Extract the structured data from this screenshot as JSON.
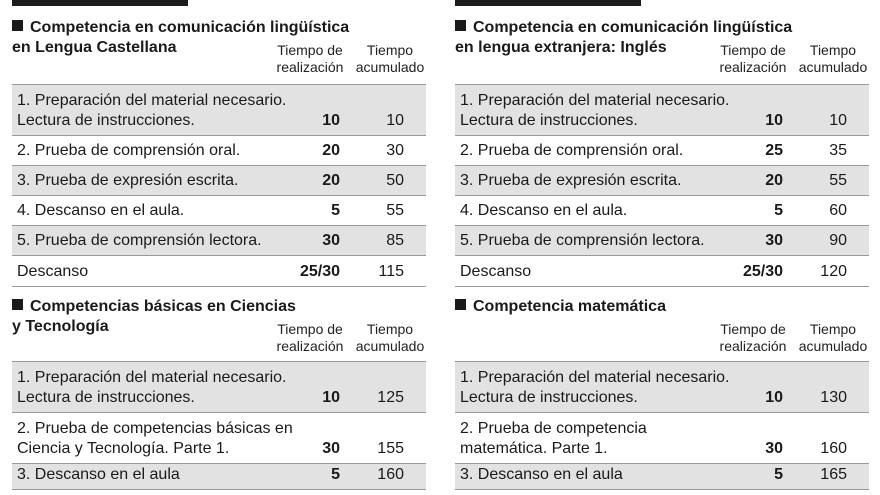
{
  "left": {
    "sections": [
      {
        "title_line1": "Competencia en comunicación lingüística",
        "title_line2": "en Lengua Castellana",
        "col_time": [
          "Tiempo de",
          "realización"
        ],
        "col_acc": [
          "Tiempo",
          "acumulado"
        ],
        "rows": [
          {
            "label": [
              "1. Preparación del material necesario.",
              "Lectura de instrucciones."
            ],
            "time": "10",
            "acc": "10"
          },
          {
            "label": [
              "2. Prueba de comprensión oral."
            ],
            "time": "20",
            "acc": "30"
          },
          {
            "label": [
              "3. Prueba de expresión escrita."
            ],
            "time": "20",
            "acc": "50"
          },
          {
            "label": [
              "4. Descanso en el aula."
            ],
            "time": "5",
            "acc": "55"
          },
          {
            "label": [
              "5. Prueba de comprensión lectora."
            ],
            "time": "30",
            "acc": "85"
          },
          {
            "label": [
              "Descanso"
            ],
            "time": "25/30",
            "acc": "115"
          }
        ]
      },
      {
        "title_line1": "Competencias básicas en Ciencias",
        "title_line2": "y Tecnología",
        "col_time": [
          "Tiempo de",
          "realización"
        ],
        "col_acc": [
          "Tiempo",
          "acumulado"
        ],
        "rows": [
          {
            "label": [
              "1. Preparación del material necesario.",
              "Lectura de instrucciones."
            ],
            "time": "10",
            "acc": "125"
          },
          {
            "label": [
              "2. Prueba de competencias básicas en",
              "Ciencia y Tecnología. Parte 1."
            ],
            "time": "30",
            "acc": "155"
          },
          {
            "label": [
              "3. Descanso en el aula"
            ],
            "time": "5",
            "acc": "160"
          }
        ]
      }
    ]
  },
  "right": {
    "sections": [
      {
        "title_line1": "Competencia en comunicación lingüística",
        "title_line2": "en lengua extranjera: Inglés",
        "col_time": [
          "Tiempo de",
          "realización"
        ],
        "col_acc": [
          "Tiempo",
          "acumulado"
        ],
        "rows": [
          {
            "label": [
              "1. Preparación del material necesario.",
              "Lectura de instrucciones."
            ],
            "time": "10",
            "acc": "10"
          },
          {
            "label": [
              "2. Prueba de comprensión oral."
            ],
            "time": "25",
            "acc": "35"
          },
          {
            "label": [
              "3. Prueba de expresión escrita."
            ],
            "time": "20",
            "acc": "55"
          },
          {
            "label": [
              "4. Descanso en el aula."
            ],
            "time": "5",
            "acc": "60"
          },
          {
            "label": [
              "5. Prueba de comprensión lectora."
            ],
            "time": "30",
            "acc": "90"
          },
          {
            "label": [
              "Descanso"
            ],
            "time": "25/30",
            "acc": "120"
          }
        ]
      },
      {
        "title_line1": "Competencia matemática",
        "title_line2": "",
        "col_time": [
          "Tiempo de",
          "realización"
        ],
        "col_acc": [
          "Tiempo",
          "acumulado"
        ],
        "rows": [
          {
            "label": [
              "1. Preparación del material necesario.",
              "Lectura de instrucciones."
            ],
            "time": "10",
            "acc": "130"
          },
          {
            "label": [
              "2. Prueba de competencia",
              "matemática. Parte 1."
            ],
            "time": "30",
            "acc": "160"
          },
          {
            "label": [
              "3. Descanso en el aula"
            ],
            "time": "5",
            "acc": "165"
          }
        ]
      }
    ]
  }
}
